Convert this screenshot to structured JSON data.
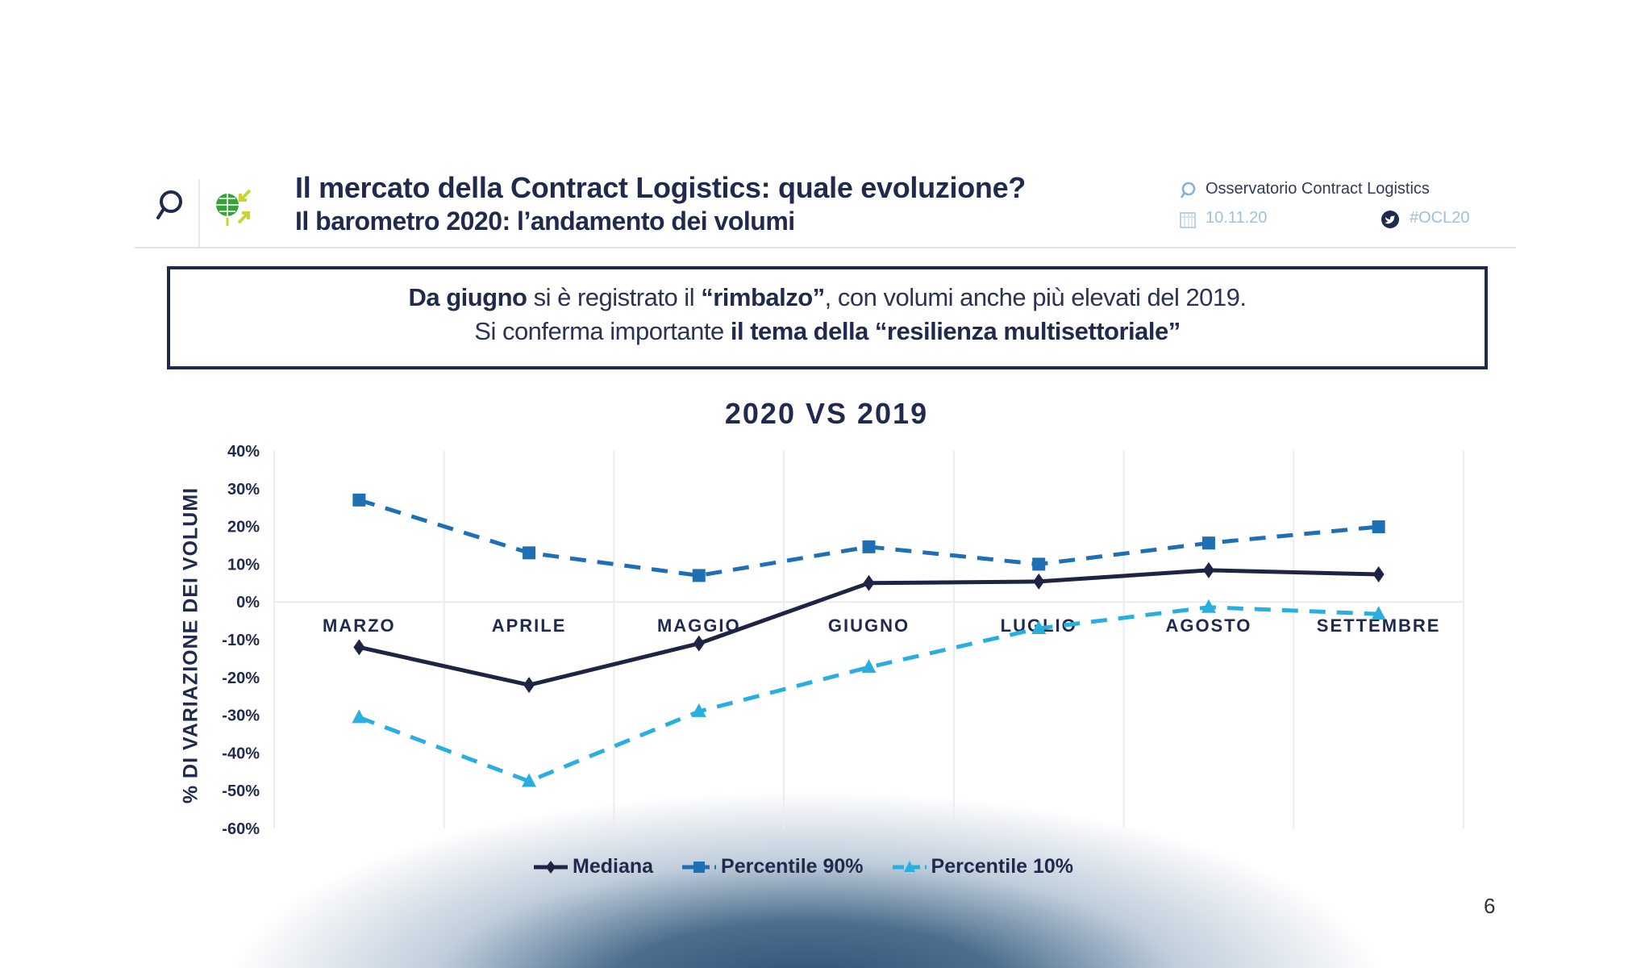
{
  "header": {
    "title_line1": "Il mercato della Contract Logistics: quale evoluzione?",
    "title_line2": "Il barometro 2020: l’andamento dei volumi",
    "observatory": "Osservatorio Contract Logistics",
    "date": "10.11.20",
    "hashtag": "#OCL20",
    "icons": [
      "magnifier-logo-icon",
      "globe-arrows-logo-icon",
      "magnifier-small-icon",
      "calendar-icon",
      "twitter-icon"
    ]
  },
  "message": {
    "line1_bold": "Da giugno",
    "line1_a": " si è registrato il ",
    "line1_bold2": "“rimbalzo”",
    "line1_b": ", con volumi anche più elevati del 2019.",
    "line2_a": "Si conferma importante ",
    "line2_bold": "il tema della “resilienza multisettoriale”"
  },
  "page_number": "6",
  "colors": {
    "mediana": "#1f2444",
    "p90": "#1f6fb5",
    "p10": "#29aee0",
    "text": "#1f2a4d"
  },
  "chart_data": {
    "type": "line",
    "title": "2020 VS 2019",
    "xlabel": "",
    "ylabel": "% DI VARIAZIONE DEI VOLUMI",
    "ylim": [
      -60,
      40
    ],
    "yticks": [
      40,
      30,
      20,
      10,
      0,
      -10,
      -20,
      -30,
      -40,
      -50,
      -60
    ],
    "ytick_labels": [
      "40%",
      "30%",
      "20%",
      "10%",
      "0%",
      "-10%",
      "-20%",
      "-30%",
      "-40%",
      "-50%",
      "-60%"
    ],
    "categories": [
      "MARZO",
      "APRILE",
      "MAGGIO",
      "GIUGNO",
      "LUGLIO",
      "AGOSTO",
      "SETTEMBRE"
    ],
    "grid": "vertical",
    "legend_position": "bottom",
    "series": [
      {
        "name": "Mediana",
        "marker": "diamond",
        "dash": "solid",
        "values": [
          -12,
          -22,
          -11,
          5,
          5.4,
          8.4,
          7.3
        ]
      },
      {
        "name": "Percentile 90%",
        "marker": "square",
        "dash": "dashed",
        "values": [
          27,
          13,
          7,
          14.6,
          10,
          15.6,
          19.9
        ]
      },
      {
        "name": "Percentile 10%",
        "marker": "triangle",
        "dash": "dashed",
        "values": [
          -30.6,
          -47.5,
          -29,
          -17.3,
          -7,
          -1.4,
          -3.2
        ]
      }
    ]
  }
}
